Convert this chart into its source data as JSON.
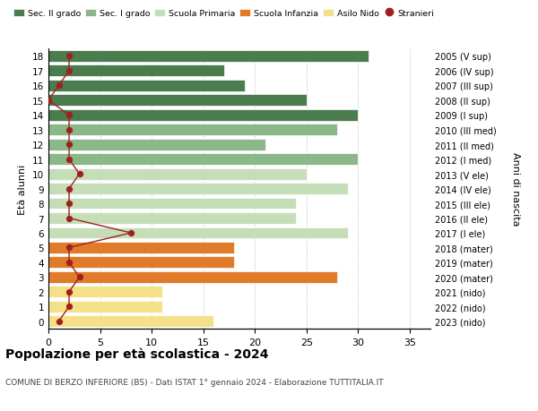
{
  "ages": [
    18,
    17,
    16,
    15,
    14,
    13,
    12,
    11,
    10,
    9,
    8,
    7,
    6,
    5,
    4,
    3,
    2,
    1,
    0
  ],
  "anni_nascita": [
    "2005 (V sup)",
    "2006 (IV sup)",
    "2007 (III sup)",
    "2008 (II sup)",
    "2009 (I sup)",
    "2010 (III med)",
    "2011 (II med)",
    "2012 (I med)",
    "2013 (V ele)",
    "2014 (IV ele)",
    "2015 (III ele)",
    "2016 (II ele)",
    "2017 (I ele)",
    "2018 (mater)",
    "2019 (mater)",
    "2020 (mater)",
    "2021 (nido)",
    "2022 (nido)",
    "2023 (nido)"
  ],
  "bar_values": [
    31,
    17,
    19,
    25,
    30,
    28,
    21,
    30,
    25,
    29,
    24,
    24,
    29,
    18,
    18,
    28,
    11,
    11,
    16
  ],
  "bar_colors": [
    "#4a7c4e",
    "#4a7c4e",
    "#4a7c4e",
    "#4a7c4e",
    "#4a7c4e",
    "#8ab888",
    "#8ab888",
    "#8ab888",
    "#c5deb8",
    "#c5deb8",
    "#c5deb8",
    "#c5deb8",
    "#c5deb8",
    "#e07b2a",
    "#e07b2a",
    "#e07b2a",
    "#f5e08a",
    "#f5e08a",
    "#f5e08a"
  ],
  "stranieri": [
    2,
    2,
    1,
    0,
    2,
    2,
    2,
    2,
    3,
    2,
    2,
    2,
    8,
    2,
    2,
    3,
    2,
    2,
    1
  ],
  "xlim": [
    0,
    37
  ],
  "xticks": [
    0,
    5,
    10,
    15,
    20,
    25,
    30,
    35
  ],
  "title": "Popolazione per età scolastica - 2024",
  "subtitle": "COMUNE DI BERZO INFERIORE (BS) - Dati ISTAT 1° gennaio 2024 - Elaborazione TUTTITALIA.IT",
  "ylabel": "Età alunni",
  "ylabel2": "Anni di nascita",
  "legend_labels": [
    "Sec. II grado",
    "Sec. I grado",
    "Scuola Primaria",
    "Scuola Infanzia",
    "Asilo Nido",
    "Stranieri"
  ],
  "legend_colors": [
    "#4a7c4e",
    "#8ab888",
    "#c5deb8",
    "#e07b2a",
    "#f5e08a",
    "#a02020"
  ],
  "bar_height": 0.78,
  "stranieri_color": "#a02020",
  "line_color": "#a02020",
  "background_color": "#ffffff",
  "grid_color": "#cccccc"
}
